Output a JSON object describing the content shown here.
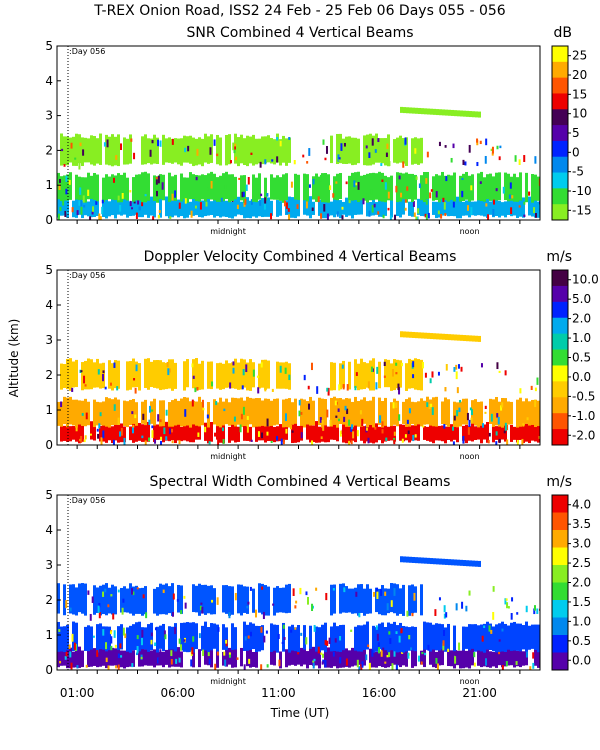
{
  "page_title": "T-REX Onion Road, ISS2  24 Feb - 25 Feb 06 Days 055 - 056",
  "shared": {
    "ylabel": "Altitude (km)",
    "xlabel": "Time (UT)",
    "x_tick_labels": [
      "01:00",
      "06:00",
      "11:00",
      "16:00",
      "21:00"
    ],
    "x_tick_hours": [
      1,
      6,
      11,
      16,
      21
    ],
    "x_range_hours": [
      0,
      24
    ],
    "day_marker_label": ":Day 056",
    "midnight_label": "midnight",
    "noon_label": "noon",
    "y_ticks": [
      0,
      1,
      2,
      3,
      4,
      5
    ]
  },
  "chart_data": [
    {
      "type": "heatmap",
      "title": "SNR Combined 4 Vertical Beams",
      "unit": "dB",
      "ylim": [
        0,
        5
      ],
      "colorbar_ticks": [
        "25",
        "20",
        "15",
        "10",
        "5",
        "0",
        "-5",
        "-10",
        "-15"
      ],
      "colorbar_colors": [
        "#ffff00",
        "#ffaa00",
        "#ff5500",
        "#ee0000",
        "#440055",
        "#5500aa",
        "#0022ff",
        "#0088ee",
        "#00ccee",
        "#33dd33",
        "#88ee22"
      ],
      "layers": [
        {
          "alt": [
            0.1,
            0.6
          ],
          "color": "#00aaee"
        },
        {
          "alt": [
            0.55,
            1.3
          ],
          "color": "#33dd33"
        },
        {
          "alt": [
            1.6,
            2.4
          ],
          "color": "#88ee22"
        }
      ]
    },
    {
      "type": "heatmap",
      "title": "Doppler Velocity Combined 4 Vertical Beams",
      "unit": "m/s",
      "ylim": [
        0,
        5
      ],
      "colorbar_ticks": [
        "10.0",
        "5.0",
        "2.0",
        "1.0",
        "0.5",
        "0.0",
        "-0.5",
        "-1.0",
        "-2.0"
      ],
      "colorbar_colors": [
        "#440044",
        "#5500aa",
        "#0022ff",
        "#00aaee",
        "#00ccaa",
        "#33dd33",
        "#ffff00",
        "#ffcc00",
        "#ffaa00",
        "#ff5500",
        "#ee0000"
      ],
      "layers": [
        {
          "alt": [
            0.1,
            0.6
          ],
          "color": "#ee0000"
        },
        {
          "alt": [
            0.55,
            1.3
          ],
          "color": "#ffaa00"
        },
        {
          "alt": [
            1.6,
            2.4
          ],
          "color": "#ffcc00"
        }
      ]
    },
    {
      "type": "heatmap",
      "title": "Spectral Width Combined 4 Vertical Beams",
      "unit": "m/s",
      "ylim": [
        0,
        5
      ],
      "colorbar_ticks": [
        "4.0",
        "3.5",
        "3.0",
        "2.5",
        "2.0",
        "1.5",
        "1.0",
        "0.5",
        "0.0"
      ],
      "colorbar_colors": [
        "#ee0000",
        "#ff5500",
        "#ffaa00",
        "#ffff00",
        "#88ee22",
        "#33dd33",
        "#00ccee",
        "#0088ee",
        "#0022ff",
        "#5500aa"
      ],
      "layers": [
        {
          "alt": [
            0.1,
            0.6
          ],
          "color": "#5500aa"
        },
        {
          "alt": [
            0.55,
            1.3
          ],
          "color": "#0044ff"
        },
        {
          "alt": [
            1.6,
            2.4
          ],
          "color": "#0055ff"
        }
      ]
    }
  ]
}
